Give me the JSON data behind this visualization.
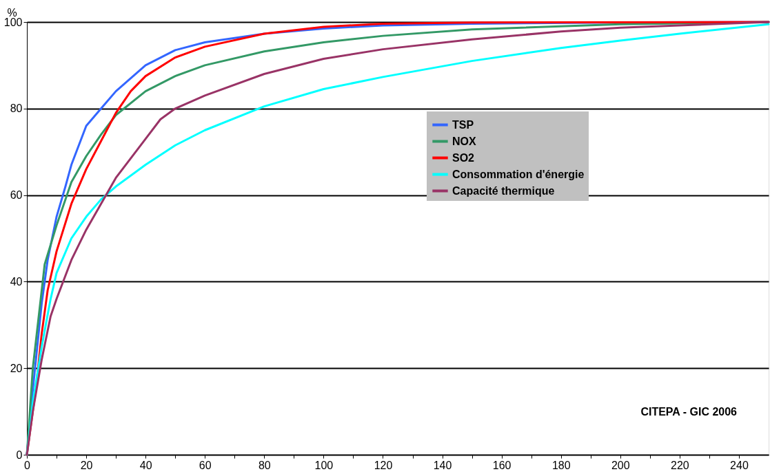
{
  "chart_data": {
    "type": "line",
    "ylabel": "%",
    "xlim": [
      0,
      250
    ],
    "ylim": [
      0,
      100
    ],
    "xticks": [
      0,
      {
        "value": 10,
        "label": null
      },
      20,
      {
        "value": 30,
        "label": null
      },
      40,
      {
        "value": 50,
        "label": null
      },
      60,
      {
        "value": 70,
        "label": null
      },
      80,
      {
        "value": 90,
        "label": null
      },
      100,
      {
        "value": 110,
        "label": null
      },
      120,
      {
        "value": 130,
        "label": null
      },
      140,
      {
        "value": 150,
        "label": null
      },
      160,
      {
        "value": 170,
        "label": null
      },
      180,
      {
        "value": 190,
        "label": null
      },
      200,
      {
        "value": 210,
        "label": null
      },
      220,
      {
        "value": 230,
        "label": null
      },
      240
    ],
    "yticks": [
      0,
      20,
      40,
      60,
      80,
      100
    ],
    "grid": "y",
    "legend": "right",
    "marker": "none",
    "line_style": "solid",
    "annotations": [
      "CITEPA - GIC 2006"
    ],
    "series": [
      {
        "name": "TSP",
        "color": "#3366ff",
        "x": [
          0,
          2,
          5,
          7,
          10,
          13,
          15,
          20,
          25,
          30,
          40,
          50,
          60,
          80,
          100,
          120,
          150,
          200,
          250
        ],
        "values": [
          0,
          15,
          35,
          45,
          55,
          62,
          67,
          76,
          80,
          84,
          90,
          93.5,
          95.3,
          97.3,
          98.5,
          99.2,
          99.6,
          99.9,
          100
        ]
      },
      {
        "name": "NOX",
        "color": "#339966",
        "x": [
          0,
          2,
          5,
          6,
          10,
          15,
          20,
          25,
          30,
          40,
          50,
          60,
          80,
          100,
          120,
          150,
          200,
          250
        ],
        "values": [
          0,
          20,
          38,
          44,
          53,
          63,
          69,
          74,
          78.5,
          84,
          87.5,
          90,
          93.2,
          95.3,
          96.8,
          98.3,
          99.5,
          100
        ]
      },
      {
        "name": "SO2",
        "color": "#ff0000",
        "x": [
          0,
          3,
          5,
          7,
          10,
          15,
          20,
          25,
          30,
          35,
          40,
          50,
          60,
          80,
          100,
          120,
          150,
          250
        ],
        "values": [
          0,
          15,
          28,
          38,
          47,
          58,
          66,
          72.5,
          79,
          84,
          87.5,
          91.8,
          94.3,
          97.3,
          98.9,
          99.6,
          99.9,
          100
        ]
      },
      {
        "name": "Consommation d'énergie",
        "color": "#00ffff",
        "x": [
          0,
          2,
          5,
          8,
          10,
          15,
          20,
          25,
          30,
          40,
          50,
          60,
          80,
          100,
          120,
          150,
          180,
          200,
          220,
          250
        ],
        "values": [
          0,
          12,
          25,
          36,
          42,
          50,
          55,
          59,
          62,
          67,
          71.5,
          75,
          80.5,
          84.5,
          87.3,
          91,
          94,
          95.7,
          97.3,
          99.5
        ]
      },
      {
        "name": "Capacité thermique",
        "color": "#993366",
        "x": [
          0,
          2,
          5,
          8,
          10,
          15,
          20,
          25,
          30,
          40,
          45,
          50,
          60,
          80,
          100,
          120,
          150,
          180,
          200,
          250
        ],
        "values": [
          0,
          10,
          22,
          32,
          36,
          45,
          52,
          58,
          64,
          73,
          77.5,
          80,
          83,
          88,
          91.5,
          93.7,
          96,
          97.8,
          98.7,
          100
        ]
      }
    ]
  }
}
